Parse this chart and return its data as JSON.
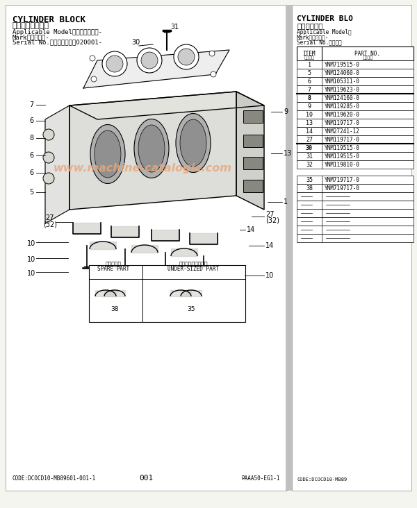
{
  "bg_color": "#f5f5f0",
  "page_bg": "#ffffff",
  "title": "CYLINDER BLOCK",
  "title_jp": "シリンダブロック",
  "applicable_model": "Applicable Model（適用機種）：-",
  "mark": "Mark（記号）：-",
  "serial_no": "Serial No.（適用号機）：020001-",
  "title2": "CYLINDER BLO",
  "title2_jp": "シリンダブロ",
  "applicable_model2": "Applicable Model（",
  "mark2": "Mark（記号）：-",
  "serial_no2": "Serial No.（適用号",
  "watermark": "www.machine-catalogic.com",
  "watermark_color": "#e8a87c",
  "watermark_alpha": 0.85,
  "code_left": "CODE:DCOCD10-MB89601-001-1",
  "page_num": "001",
  "code_right_partial": "PAAA50-EG1-1",
  "code_right2": "CODE:DCOCD10-MB89",
  "table_rows": [
    {
      "item": "1",
      "part": "YNM719515-0",
      "bold": false
    },
    {
      "item": "5",
      "part": "YNM124060-0",
      "bold": false
    },
    {
      "item": "6",
      "part": "YNM105311-0",
      "bold": false
    },
    {
      "item": "7",
      "part": "YNM119623-0",
      "bold": false
    },
    {
      "item": "8",
      "part": "YNM124160-0",
      "bold": true
    },
    {
      "item": "9",
      "part": "YNM119285-0",
      "bold": false
    },
    {
      "item": "10",
      "part": "YNM119620-0",
      "bold": false
    },
    {
      "item": "13",
      "part": "YNM119717-0",
      "bold": false
    },
    {
      "item": "14",
      "part": "YNM27241-12",
      "bold": false
    },
    {
      "item": "27",
      "part": "YNM119717-0",
      "bold": false
    },
    {
      "item": "30",
      "part": "YNM119515-0",
      "bold": true
    },
    {
      "item": "31",
      "part": "YNM119515-0",
      "bold": false
    },
    {
      "item": "32",
      "part": "YNM119810-0",
      "bold": false
    },
    {
      "item": "35",
      "part": "YNM719717-0",
      "bold": false,
      "gap_before": true
    },
    {
      "item": "38",
      "part": "YNM719717-0",
      "bold": false
    }
  ]
}
